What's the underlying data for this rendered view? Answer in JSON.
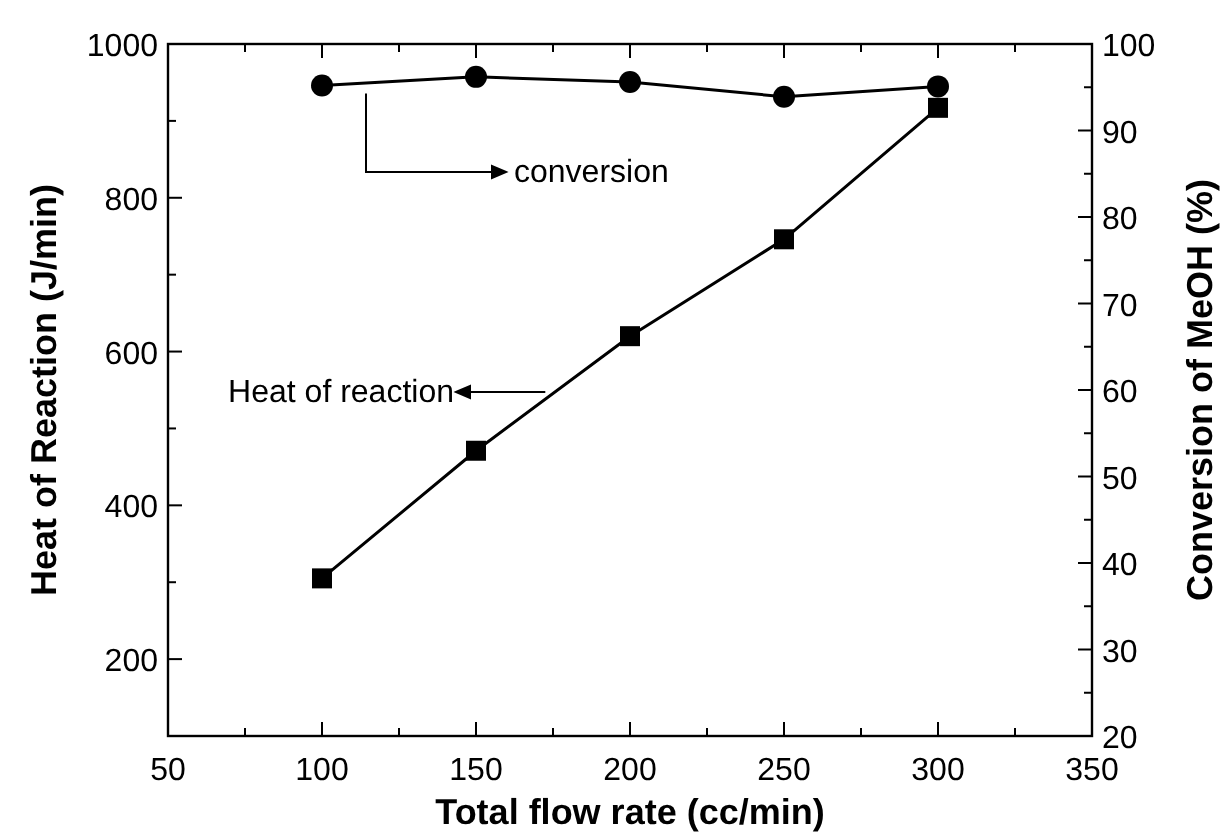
{
  "chart_data": {
    "type": "line",
    "xlabel": "Total flow rate (cc/min)",
    "ylabel": "Heat of Reaction (J/min)",
    "y2label": "Conversion of MeOH (%)",
    "x": [
      100,
      150,
      200,
      250,
      300
    ],
    "series": [
      {
        "color": "#000000",
        "values": [
          95.2,
          96.2,
          95.6,
          93.9,
          95.1
        ],
        "axis": "y2",
        "marker": "circle"
      },
      {
        "color": "#000000",
        "values": [
          305,
          471,
          620,
          746,
          917
        ],
        "marker": "square"
      }
    ],
    "annotations": [
      "conversion",
      "Heat of reaction"
    ],
    "xlim": [
      50,
      350
    ],
    "xticks": [
      50,
      {
        "value": 75,
        "label": null
      },
      100,
      {
        "value": 125,
        "label": null
      },
      150,
      {
        "value": 175,
        "label": null
      },
      200,
      {
        "value": 225,
        "label": null
      },
      250,
      {
        "value": 275,
        "label": null
      },
      300,
      {
        "value": 325,
        "label": null
      },
      350
    ],
    "ylim": [
      100,
      1000
    ],
    "yticks": [
      {
        "value": 100,
        "label": null
      },
      200,
      {
        "value": 300,
        "label": null
      },
      400,
      {
        "value": 500,
        "label": null
      },
      600,
      {
        "value": 700,
        "label": null
      },
      800,
      {
        "value": 900,
        "label": null
      },
      1000
    ],
    "y2lim": [
      20,
      100
    ],
    "y2ticks": [
      20,
      {
        "value": 25,
        "label": null
      },
      30,
      {
        "value": 35,
        "label": null
      },
      40,
      {
        "value": 45,
        "label": null
      },
      50,
      {
        "value": 55,
        "label": null
      },
      60,
      {
        "value": 65,
        "label": null
      },
      70,
      {
        "value": 75,
        "label": null
      },
      80,
      {
        "value": 85,
        "label": null
      },
      90,
      {
        "value": 95,
        "label": null
      },
      100
    ],
    "grid": false,
    "line_style": "solid"
  }
}
